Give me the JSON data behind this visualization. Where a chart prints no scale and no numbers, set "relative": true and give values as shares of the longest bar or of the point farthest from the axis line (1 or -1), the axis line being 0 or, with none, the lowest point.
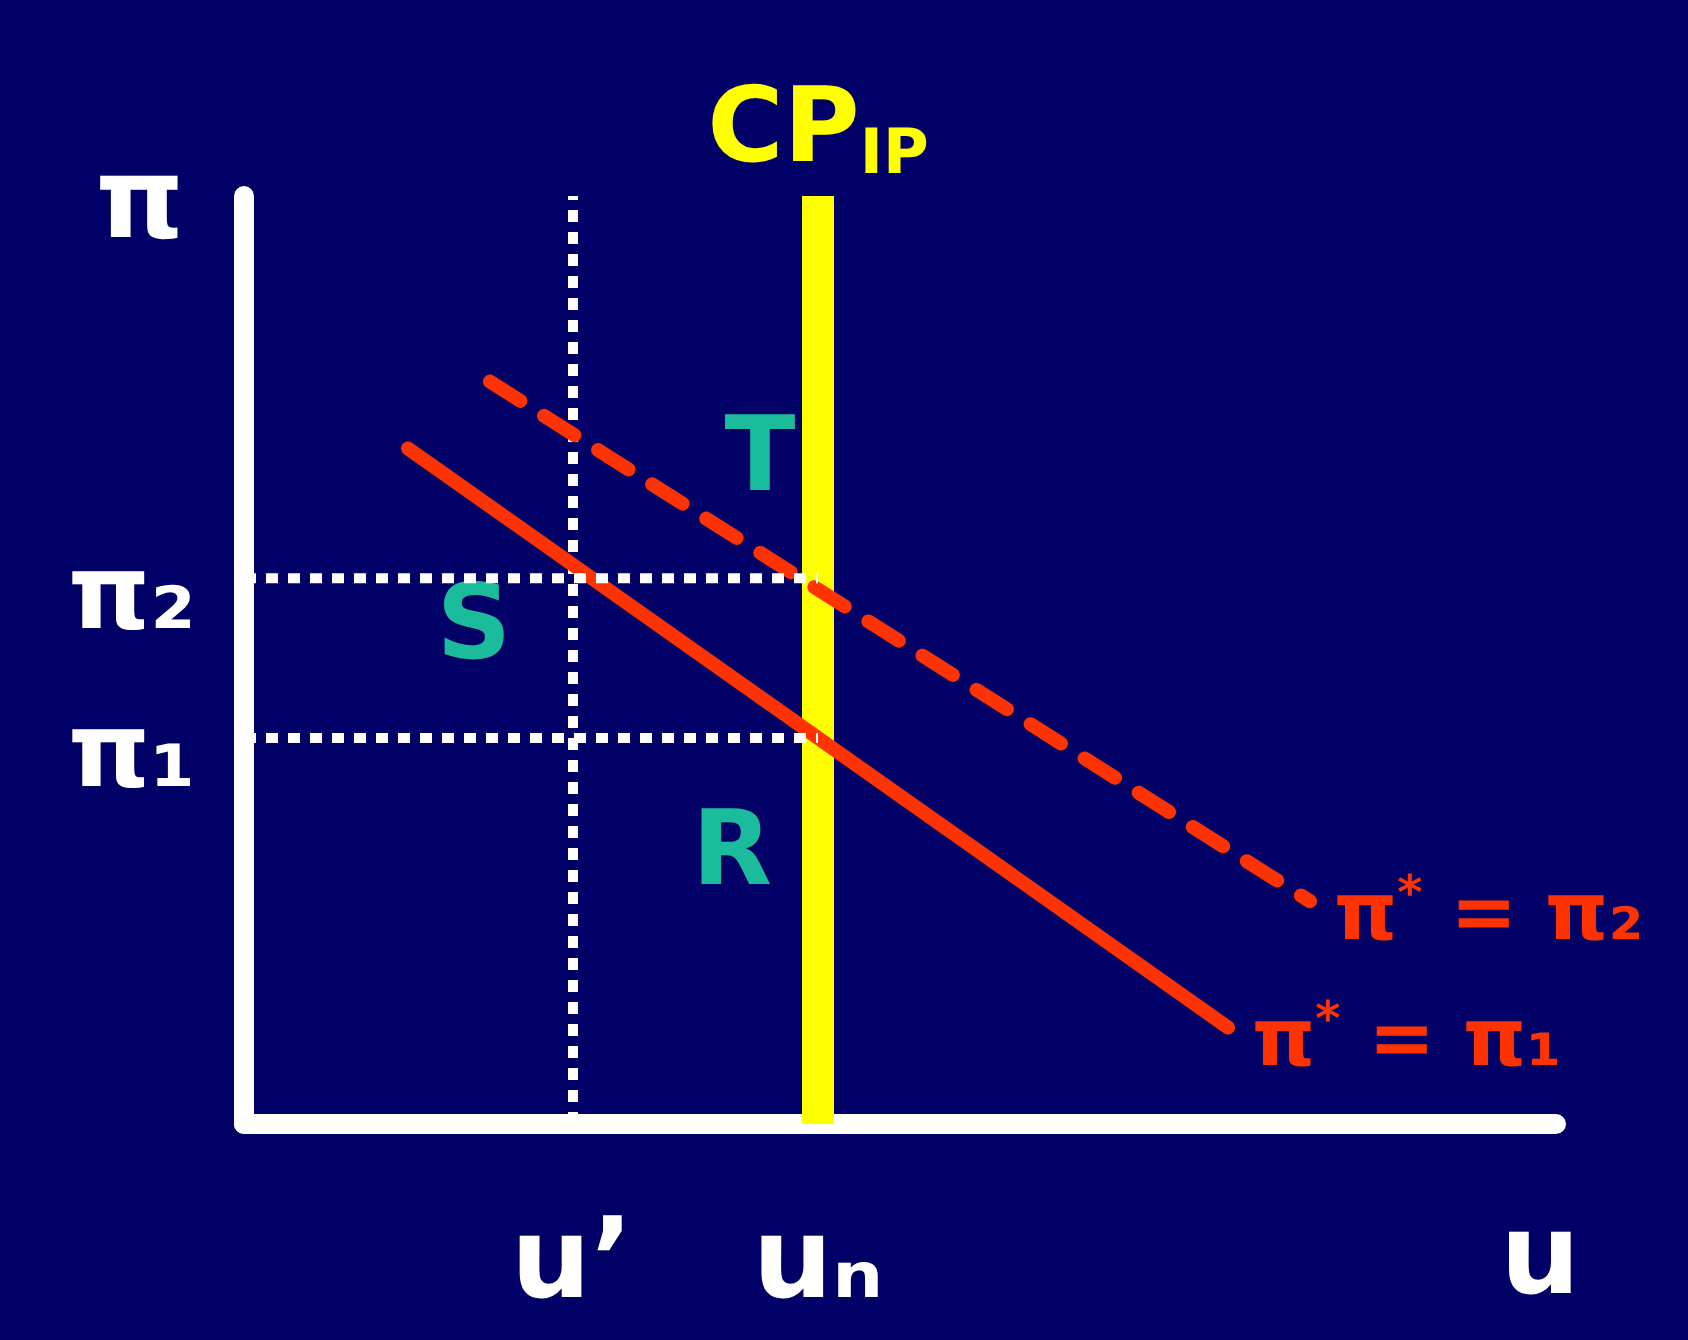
{
  "chart_data": {
    "type": "line",
    "xlabel": "u",
    "ylabel": "π",
    "relative": true,
    "categories": [
      null,
      null,
      null,
      null,
      "u’",
      null,
      null,
      "uₙ",
      null,
      null,
      null,
      null,
      null,
      null,
      null,
      null,
      null
    ],
    "grid": false,
    "legend": false,
    "series": [
      {
        "name": "π$^{*}$ = π₁",
        "color": "#ff3300",
        "values": [
          null,
          null,
          0.91,
          null,
          null,
          null,
          null,
          null,
          null,
          null,
          null,
          null,
          0.13,
          null,
          null,
          null,
          null
        ],
        "line_style": "solid"
      },
      {
        "name": "π$^{*}$ = π₂",
        "color": "#ff3300",
        "values": [
          null,
          null,
          null,
          1,
          null,
          null,
          null,
          null,
          null,
          null,
          null,
          null,
          null,
          0.3,
          null,
          null,
          null
        ],
        "line_style": "dashed"
      },
      {
        "color": "#ffffff",
        "values": [
          0.735,
          null,
          null,
          null,
          null,
          null,
          null,
          0.735,
          null,
          null,
          null,
          null,
          null,
          null,
          null,
          null,
          null
        ],
        "line_style": "dotted"
      },
      {
        "color": "#ffffff",
        "values": [
          0.52,
          null,
          null,
          null,
          null,
          null,
          null,
          0.52,
          null,
          null,
          null,
          null,
          null,
          null,
          null,
          null,
          null
        ],
        "line_style": "dotted"
      }
    ],
    "ref_lines": [
      {
        "axis": "x",
        "value": "uₙ",
        "label": "CP$_{IP}$",
        "color": "#ffff00"
      },
      {
        "axis": "x",
        "value": "u’",
        "color": "#ffffff",
        "line_style": "dotted"
      }
    ],
    "annotations": [
      "T",
      "S",
      "R",
      "π₂",
      "π₁"
    ]
  }
}
